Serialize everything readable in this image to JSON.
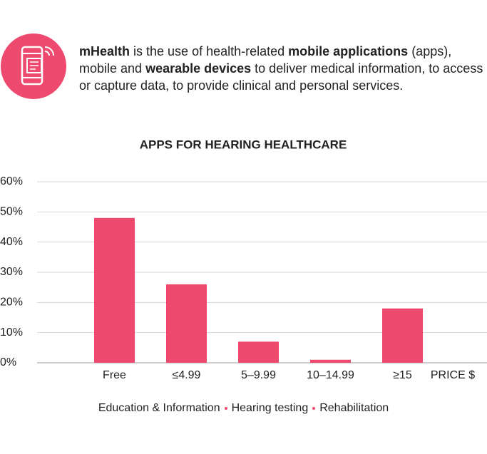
{
  "intro": [
    {
      "text": "mHealth",
      "bold": true
    },
    {
      "text": " is the use of health-related ",
      "bold": false
    },
    {
      "text": "mobile applications",
      "bold": true
    },
    {
      "text": " (apps), mobile and ",
      "bold": false
    },
    {
      "text": "wearable devices",
      "bold": true
    },
    {
      "text": " to deliver medical information, to access or capture data, to provide clinical and personal services.",
      "bold": false
    }
  ],
  "chart_data": {
    "type": "bar",
    "title": "APPS FOR HEARING HEALTHCARE",
    "categories": [
      "Free",
      "≤4.99",
      "5–9.99",
      "10–14.99",
      "≥15"
    ],
    "values": [
      48,
      26,
      7,
      1,
      18
    ],
    "color": "#ee4a70",
    "x_label": "PRICE $",
    "ylim": [
      0,
      60
    ],
    "yticks": [
      {
        "value": 0,
        "label": "0%"
      },
      {
        "value": 10,
        "label": "10%"
      },
      {
        "value": 20,
        "label": "20%"
      },
      {
        "value": 30,
        "label": "30%"
      },
      {
        "value": 40,
        "label": "40%"
      },
      {
        "value": 50,
        "label": "50%"
      },
      {
        "value": 60,
        "label": "60%"
      }
    ],
    "grid": true,
    "legend_items": [
      "Education & Information",
      "Hearing testing",
      "Rehabilitation"
    ]
  }
}
